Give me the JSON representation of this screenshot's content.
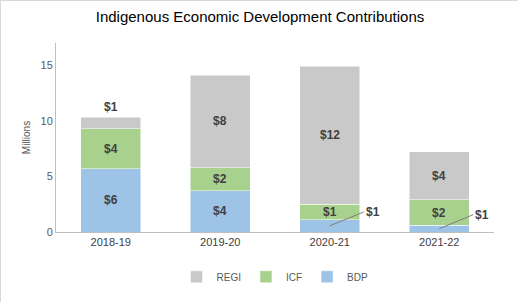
{
  "chart_data": {
    "type": "bar",
    "title": "Indigenous Economic Development Contributions",
    "y_label": "Millions",
    "categories": [
      "2018-19",
      "2019-20",
      "2020-21",
      "2021-22"
    ],
    "series": [
      {
        "name": "BDP",
        "color": "#9dc3e6",
        "values": [
          5.7,
          3.7,
          1.1,
          0.6
        ],
        "value_labels": [
          "$6",
          "$4",
          "$1",
          "$1"
        ]
      },
      {
        "name": "ICF",
        "color": "#a9d18e",
        "values": [
          3.6,
          2.1,
          1.4,
          2.3
        ],
        "value_labels": [
          "$4",
          "$2",
          "$1",
          "$2"
        ]
      },
      {
        "name": "REGI",
        "color": "#c9c9c9",
        "values": [
          1.0,
          8.3,
          12.4,
          4.3
        ],
        "value_labels": [
          "$1",
          "$8",
          "$12",
          "$4"
        ]
      }
    ],
    "stacked": true,
    "data_labels": true,
    "ylim": [
      0,
      17
    ],
    "yticks": [
      0,
      5,
      10,
      15
    ],
    "grid": false,
    "legend": "bottom"
  }
}
